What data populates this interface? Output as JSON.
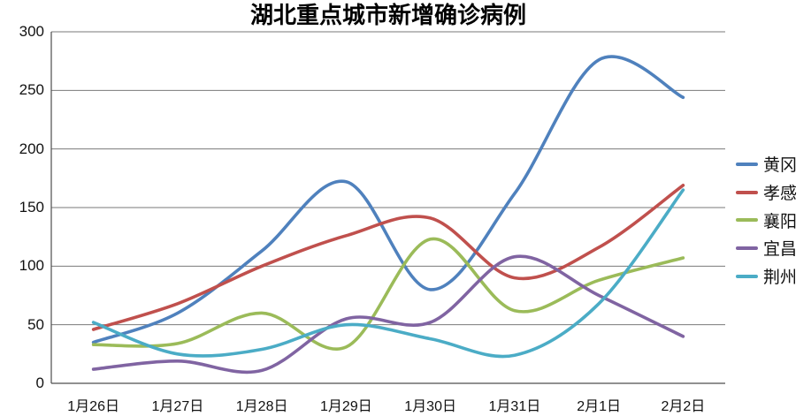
{
  "title": "湖北重点城市新增确诊病例",
  "chart_data": {
    "type": "line",
    "smooth": true,
    "title": "湖北重点城市新增确诊病例",
    "xlabel": "",
    "ylabel": "",
    "categories": [
      "1月26日",
      "1月27日",
      "1月28日",
      "1月29日",
      "1月30日",
      "1月31日",
      "2月1日",
      "2月2日"
    ],
    "series": [
      {
        "key": "huanggang",
        "name": "黄冈",
        "color": "#4F81BD",
        "values": [
          35,
          60,
          113,
          172,
          80,
          162,
          276,
          244
        ]
      },
      {
        "key": "xiaogan",
        "name": "孝感",
        "color": "#C0504D",
        "values": [
          46,
          68,
          100,
          126,
          141,
          90,
          116,
          169
        ]
      },
      {
        "key": "xiangyang",
        "name": "襄阳",
        "color": "#9BBB59",
        "values": [
          33,
          34,
          60,
          31,
          123,
          62,
          88,
          107
        ]
      },
      {
        "key": "yichang",
        "name": "宜昌",
        "color": "#8064A2",
        "values": [
          12,
          19,
          11,
          55,
          52,
          108,
          75,
          40
        ]
      },
      {
        "key": "jingzhou",
        "name": "荆州",
        "color": "#4BACC6",
        "values": [
          52,
          25,
          29,
          50,
          38,
          24,
          68,
          165
        ]
      }
    ],
    "ylim": [
      0,
      300
    ],
    "ytick_step": 50,
    "yticks": [
      0,
      50,
      100,
      150,
      200,
      250,
      300
    ],
    "grid": true,
    "legend_position": "right",
    "gridline_color": "#7a7a7a",
    "axis_color": "#4d4d4d"
  }
}
